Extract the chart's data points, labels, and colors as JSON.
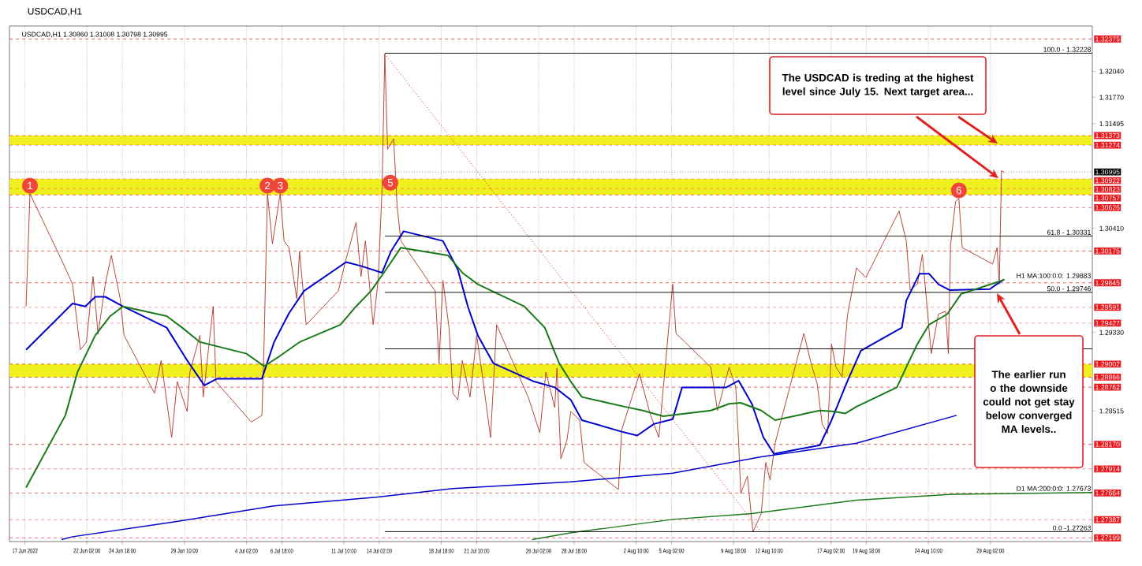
{
  "chart_data": {
    "type": "line",
    "title": "USDCAD,H1",
    "subtitle": "USDCAD,H1 1.30860 1.31008 1.30798 1.30995",
    "xlim": [
      "2022-06-16T06:00",
      "2022-09-05T18:00"
    ],
    "ylim": [
      1.2716,
      1.3251
    ],
    "grid": "x",
    "xticks": [
      {
        "value": "2022-06-17T10:00",
        "label": "17 Jun 2022"
      },
      {
        "value": "2022-06-22T02:00",
        "label": "22 Jun 02:00"
      },
      {
        "value": "2022-06-24T18:00",
        "label": "24 Jun 18:00"
      },
      {
        "value": "2022-06-29T10:00",
        "label": "29 Jun 10:00"
      },
      {
        "value": "2022-07-04T02:00",
        "label": "4 Jul 02:00"
      },
      {
        "value": "2022-07-06T18:00",
        "label": "6 Jul 18:00"
      },
      {
        "value": "2022-07-11T10:00",
        "label": "11 Jul 10:00"
      },
      {
        "value": "2022-07-14T02:00",
        "label": "14 Jul 02:00"
      },
      {
        "value": "2022-07-18T18:00",
        "label": "18 Jul 18:00"
      },
      {
        "value": "2022-07-21T10:00",
        "label": "21 Jul 10:00"
      },
      {
        "value": "2022-07-26T02:00",
        "label": "26 Jul 02:00"
      },
      {
        "value": "2022-07-28T18:00",
        "label": "28 Jul 18:00"
      },
      {
        "value": "2022-08-02T10:00",
        "label": "2 Aug 10:00"
      },
      {
        "value": "2022-08-05T02:00",
        "label": "5 Aug 02:00"
      },
      {
        "value": "2022-08-09T18:00",
        "label": "9 Aug 18:00"
      },
      {
        "value": "2022-08-12T10:00",
        "label": "12 Aug 10:00"
      },
      {
        "value": "2022-08-17T02:00",
        "label": "17 Aug 02:00"
      },
      {
        "value": "2022-08-19T18:00",
        "label": "19 Aug 18:00"
      },
      {
        "value": "2022-08-24T10:00",
        "label": "24 Aug 10:00"
      },
      {
        "value": "2022-08-29T02:00",
        "label": "29 Aug 02:00"
      }
    ],
    "yticks": [
      {
        "value": 1.3204,
        "label": "1.32040"
      },
      {
        "value": 1.3177,
        "label": "1.31770"
      },
      {
        "value": 1.31495,
        "label": "1.31495"
      },
      {
        "value": 1.3041,
        "label": "1.30410"
      },
      {
        "value": 1.2933,
        "label": "1.29330"
      },
      {
        "value": 1.28515,
        "label": "1.28515"
      }
    ],
    "series": [
      {
        "color": "#b03a2e",
        "line_style": "solid",
        "x": [
          "2022-06-17T12:00",
          "2022-06-17T19:00",
          "2022-06-20T06:00",
          "2022-06-21T00:00",
          "2022-06-21T14:00",
          "2022-06-22T01:00",
          "2022-06-22T13:00",
          "2022-06-22T22:00",
          "2022-06-23T11:00",
          "2022-06-23T22:00",
          "2022-06-24T14:00",
          "2022-06-24T21:00",
          "2022-06-27T04:00",
          "2022-06-27T16:00",
          "2022-06-28T11:00",
          "2022-06-28T21:00",
          "2022-06-29T15:00",
          "2022-06-29T20:00",
          "2022-06-30T14:00",
          "2022-06-30T20:00",
          "2022-07-01T14:00",
          "2022-07-01T19:00",
          "2022-07-04T11:00",
          "2022-07-05T06:00",
          "2022-07-05T10:00",
          "2022-07-05T16:00",
          "2022-07-06T01:00",
          "2022-07-06T15:00",
          "2022-07-06T22:00",
          "2022-07-07T07:00",
          "2022-07-07T21:00",
          "2022-07-08T02:00",
          "2022-07-08T14:00",
          "2022-07-11T00:00",
          "2022-07-11T14:00",
          "2022-07-12T08:00",
          "2022-07-12T17:00",
          "2022-07-13T01:00",
          "2022-07-13T15:00",
          "2022-07-14T00:00",
          "2022-07-14T07:00",
          "2022-07-14T12:00",
          "2022-07-14T17:00",
          "2022-07-15T04:00",
          "2022-07-15T10:00",
          "2022-07-15T17:00",
          "2022-07-18T07:00",
          "2022-07-18T14:00",
          "2022-07-18T21:00",
          "2022-07-19T08:00",
          "2022-07-19T15:00",
          "2022-07-20T00:00",
          "2022-07-20T08:00",
          "2022-07-20T22:00",
          "2022-07-21T10:00",
          "2022-07-21T21:00",
          "2022-07-22T11:00",
          "2022-07-22T22:00",
          "2022-07-25T07:00",
          "2022-07-26T04:00",
          "2022-07-26T15:00",
          "2022-07-27T07:00",
          "2022-07-27T11:00",
          "2022-07-27T18:00",
          "2022-07-28T05:00",
          "2022-07-28T12:00",
          "2022-07-29T04:00",
          "2022-07-29T12:00",
          "2022-08-01T02:00",
          "2022-08-01T08:00",
          "2022-08-02T01:00",
          "2022-08-02T16:00",
          "2022-08-03T11:00",
          "2022-08-04T03:00",
          "2022-08-05T04:00",
          "2022-08-05T10:00",
          "2022-08-08T01:00",
          "2022-08-08T13:00",
          "2022-08-09T10:00",
          "2022-08-09T22:00",
          "2022-08-10T03:00",
          "2022-08-10T07:00",
          "2022-08-10T19:00",
          "2022-08-11T05:00",
          "2022-08-11T20:00",
          "2022-08-12T04:00",
          "2022-08-12T12:00",
          "2022-08-12T21:00",
          "2022-08-15T01:00",
          "2022-08-15T14:00",
          "2022-08-16T01:00",
          "2022-08-16T10:00",
          "2022-08-16T20:00",
          "2022-08-17T03:00",
          "2022-08-17T11:00",
          "2022-08-17T22:00",
          "2022-08-18T08:00",
          "2022-08-19T00:00",
          "2022-08-19T17:00",
          "2022-08-22T05:00",
          "2022-08-22T18:00",
          "2022-08-23T01:00",
          "2022-08-23T14:00",
          "2022-08-23T23:00",
          "2022-08-24T07:00",
          "2022-08-24T15:00",
          "2022-08-25T04:00",
          "2022-08-25T17:00",
          "2022-08-25T22:00",
          "2022-08-26T02:00",
          "2022-08-26T11:00",
          "2022-08-26T17:00",
          "2022-08-26T23:00",
          "2022-08-29T06:00",
          "2022-08-29T14:00",
          "2022-08-29T18:00",
          "2022-08-29T22:00",
          "2022-08-30T03:00"
        ],
        "values": [
          1.296,
          1.3077,
          1.3006,
          1.2983,
          1.2915,
          1.2923,
          1.2991,
          1.2931,
          1.2983,
          1.3013,
          1.2968,
          1.293,
          1.287,
          1.2904,
          1.2824,
          1.2882,
          1.2851,
          1.2892,
          1.293,
          1.2866,
          1.296,
          1.2882,
          1.284,
          1.2847,
          1.2923,
          1.3077,
          1.3025,
          1.3077,
          1.3028,
          1.3021,
          1.2968,
          1.3017,
          1.2941,
          1.2976,
          1.3009,
          1.3047,
          1.2991,
          1.3028,
          1.2941,
          1.2987,
          1.3081,
          1.3222,
          1.3123,
          1.3134,
          1.3066,
          1.3028,
          1.2976,
          1.2901,
          1.2987,
          1.2938,
          1.287,
          1.2863,
          1.2904,
          1.2866,
          1.293,
          1.2885,
          1.2824,
          1.2941,
          1.2866,
          1.2829,
          1.2892,
          1.2855,
          1.2896,
          1.2802,
          1.2821,
          1.2851,
          1.2842,
          1.2798,
          1.277,
          1.2832,
          1.2863,
          1.289,
          1.2849,
          1.2824,
          1.2983,
          1.2932,
          1.2897,
          1.2852,
          1.2897,
          1.2876,
          1.2821,
          1.2766,
          1.2784,
          1.2726,
          1.2745,
          1.2798,
          1.278,
          1.2818,
          1.2932,
          1.2901,
          1.288,
          1.2838,
          1.2828,
          1.2921,
          1.2897,
          1.2887,
          1.2952,
          1.3,
          1.299,
          1.3059,
          1.3028,
          1.2977,
          1.2983,
          1.3014,
          1.2963,
          1.2911,
          1.2952,
          1.2955,
          1.2911,
          1.3024,
          1.3069,
          1.3072,
          1.3021,
          1.3004,
          1.3021,
          1.2983,
          1.3101,
          1.3099
        ]
      },
      {
        "color": "#0000cc",
        "line_style": "solid",
        "x": [
          "2022-06-17T12:00",
          "2022-06-21T00:00",
          "2022-06-21T23:00",
          "2022-06-22T17:00",
          "2022-06-23T11:00",
          "2022-06-24T19:00",
          "2022-06-28T02:00",
          "2022-06-29T15:00",
          "2022-06-30T22:00",
          "2022-07-01T21:00",
          "2022-07-05T06:00",
          "2022-07-06T04:00",
          "2022-07-07T07:00",
          "2022-07-08T10:00",
          "2022-07-11T14:00",
          "2022-07-12T17:00",
          "2022-07-14T07:00",
          "2022-07-14T23:00",
          "2022-07-15T22:00",
          "2022-07-18T21:00",
          "2022-07-20T00:00",
          "2022-07-20T18:00",
          "2022-07-21T12:00",
          "2022-07-22T16:00",
          "2022-07-25T18:00",
          "2022-07-27T07:00",
          "2022-07-28T12:00",
          "2022-07-29T08:00",
          "2022-08-01T08:00",
          "2022-08-02T12:00",
          "2022-08-03T18:00",
          "2022-08-05T04:00",
          "2022-08-05T21:00",
          "2022-08-09T05:00",
          "2022-08-10T03:00",
          "2022-08-11T03:00",
          "2022-08-12T00:00",
          "2022-08-12T19:00",
          "2022-08-16T06:00",
          "2022-08-17T03:00",
          "2022-08-18T08:00",
          "2022-08-19T08:00",
          "2022-08-22T10:00",
          "2022-08-22T18:00",
          "2022-08-23T18:00",
          "2022-08-24T11:00",
          "2022-08-25T04:00",
          "2022-08-26T00:00",
          "2022-08-29T01:00",
          "2022-08-29T18:00",
          "2022-08-30T03:00"
        ],
        "values": [
          1.2915,
          1.2963,
          1.296,
          1.297,
          1.297,
          1.296,
          1.2938,
          1.2904,
          1.2878,
          1.2885,
          1.2885,
          1.2923,
          1.2953,
          1.2976,
          1.3006,
          1.3002,
          1.2995,
          1.3017,
          1.3038,
          1.3028,
          1.2998,
          1.296,
          1.293,
          1.2901,
          1.2882,
          1.2876,
          1.2863,
          1.2842,
          1.283,
          1.2826,
          1.2838,
          1.2843,
          1.2876,
          1.2876,
          1.2883,
          1.2859,
          1.2824,
          1.2807,
          1.2816,
          1.2842,
          1.2883,
          1.2914,
          1.2938,
          1.2966,
          1.2994,
          1.2994,
          1.2983,
          1.2977,
          1.2978,
          1.2985,
          1.2988
        ]
      },
      {
        "color": "#1a7a1a",
        "line_style": "solid",
        "x": [
          "2022-06-17T12:00",
          "2022-06-20T11:00",
          "2022-06-21T09:00",
          "2022-06-22T17:00",
          "2022-06-23T20:00",
          "2022-06-24T19:00",
          "2022-06-28T02:00",
          "2022-06-29T06:00",
          "2022-06-30T14:00",
          "2022-07-04T02:00",
          "2022-07-05T10:00",
          "2022-07-06T13:00",
          "2022-07-08T02:00",
          "2022-07-11T04:00",
          "2022-07-12T08:00",
          "2022-07-13T11:00",
          "2022-07-14T14:00",
          "2022-07-15T17:00",
          "2022-07-19T06:00",
          "2022-07-20T08:00",
          "2022-07-21T12:00",
          "2022-07-25T00:00",
          "2022-07-26T13:00",
          "2022-07-27T15:00",
          "2022-07-28T12:00",
          "2022-07-29T08:00",
          "2022-08-01T13:00",
          "2022-08-02T22:00",
          "2022-08-04T11:00",
          "2022-08-08T01:00",
          "2022-08-09T10:00",
          "2022-08-10T07:00",
          "2022-08-11T20:00",
          "2022-08-12T21:00",
          "2022-08-16T06:00",
          "2022-08-17T07:00",
          "2022-08-18T04:00",
          "2022-08-19T00:00",
          "2022-08-22T01:00",
          "2022-08-22T18:00",
          "2022-08-23T14:00",
          "2022-08-24T11:00",
          "2022-08-25T20:00",
          "2022-08-26T21:00",
          "2022-08-29T18:00",
          "2022-08-30T03:00"
        ],
        "values": [
          1.2772,
          1.2847,
          1.2892,
          1.293,
          1.295,
          1.296,
          1.295,
          1.2938,
          1.2923,
          1.2911,
          1.2898,
          1.2908,
          1.2923,
          1.2941,
          1.296,
          1.2976,
          1.2998,
          1.3021,
          1.3013,
          1.2995,
          1.2983,
          1.296,
          1.2938,
          1.2901,
          1.2882,
          1.2866,
          1.2856,
          1.2852,
          1.2846,
          1.2852,
          1.2859,
          1.286,
          1.2852,
          1.2842,
          1.2852,
          1.2851,
          1.2849,
          1.2856,
          1.2876,
          1.2897,
          1.2921,
          1.2941,
          1.2952,
          1.2973,
          1.2986,
          1.2988
        ]
      },
      {
        "color": "#0000cc",
        "line_style": "solid",
        "x": [
          "2022-06-20T04:00",
          "2022-06-21T00:00",
          "2022-06-28T11:00",
          "2022-07-06T04:00",
          "2022-07-13T20:00",
          "2022-07-19T15:00",
          "2022-07-28T11:00",
          "2022-08-05T04:00",
          "2022-08-11T20:00",
          "2022-08-19T00:00",
          "2022-08-26T13:00"
        ],
        "values": [
          1.2718,
          1.2721,
          1.2736,
          1.2753,
          1.2762,
          1.2771,
          1.2778,
          1.2787,
          1.2804,
          1.2818,
          1.2847
        ]
      },
      {
        "color": "#1a7a1a",
        "line_style": "solid",
        "x": [
          "2022-07-25T14:00",
          "2022-07-28T11:00",
          "2022-08-05T04:00",
          "2022-08-11T03:00",
          "2022-08-19T00:00",
          "2022-08-26T06:00",
          "2022-09-05T18:00"
        ],
        "values": [
          1.2718,
          1.2725,
          1.2739,
          1.2745,
          1.2759,
          1.2765,
          1.2767
        ]
      },
      {
        "color": "#cc0000",
        "line_style": "dotted",
        "x": [
          "2022-07-14T12:00",
          "2022-08-11T20:00"
        ],
        "values": [
          1.3222,
          1.2726
        ]
      },
      {
        "color": "#000000",
        "line_style": "solid",
        "x": [
          "2022-07-14T12:00",
          "2022-09-05T18:00"
        ],
        "values": [
          1.32228,
          1.32228
        ]
      },
      {
        "color": "#000000",
        "line_style": "solid",
        "x": [
          "2022-07-14T12:00",
          "2022-09-05T18:00"
        ],
        "values": [
          1.30331,
          1.30331
        ]
      },
      {
        "color": "#000000",
        "line_style": "solid",
        "x": [
          "2022-07-14T12:00",
          "2022-09-05T18:00"
        ],
        "values": [
          1.29746,
          1.29746
        ]
      },
      {
        "color": "#000000",
        "line_style": "solid",
        "x": [
          "2022-07-14T12:00",
          "2022-09-05T18:00"
        ],
        "values": [
          1.2916,
          1.2916
        ]
      },
      {
        "color": "#000000",
        "line_style": "solid",
        "x": [
          "2022-07-14T12:00",
          "2022-09-05T18:00"
        ],
        "values": [
          1.27263,
          1.27263
        ]
      }
    ],
    "bands": [
      {
        "axis": "y",
        "from": 1.31274,
        "to": 1.31373,
        "color": "#f0f020"
      },
      {
        "axis": "y",
        "from": 1.30757,
        "to": 1.30922,
        "color": "#f0f020"
      },
      {
        "axis": "y",
        "from": 1.28866,
        "to": 1.29002,
        "color": "#f0f020"
      }
    ],
    "ref_lines": [
      {
        "axis": "y",
        "value": 1.32375,
        "label": "1.32375",
        "color": "#e8191e",
        "line_style": "dashed"
      },
      {
        "axis": "y",
        "value": 1.31373,
        "label": "1.31373",
        "color": "#e8191e",
        "line_style": "dashed"
      },
      {
        "axis": "y",
        "value": 1.31274,
        "label": "1.31274",
        "color": "#e8191e",
        "line_style": "dashed"
      },
      {
        "axis": "y",
        "value": 1.30995,
        "label": "1.30995",
        "color": "#000000",
        "line_style": "dotted"
      },
      {
        "axis": "y",
        "value": 1.30922,
        "label": "1.30922",
        "color": "#e8191e",
        "line_style": "dashed"
      },
      {
        "axis": "y",
        "value": 1.30823,
        "label": "1.30823",
        "color": "#e8191e",
        "line_style": "dashed"
      },
      {
        "axis": "y",
        "value": 1.30757,
        "label": "1.30757",
        "color": "#e8191e",
        "line_style": "dashed"
      },
      {
        "axis": "y",
        "value": 1.30626,
        "label": "1.30626",
        "color": "#e8191e",
        "line_style": "dashed"
      },
      {
        "axis": "y",
        "value": 1.30175,
        "label": "1.30175",
        "color": "#e8191e",
        "line_style": "dashed"
      },
      {
        "axis": "y",
        "value": 1.29845,
        "label": "1.29845",
        "color": "#e8191e",
        "line_style": "dashed"
      },
      {
        "axis": "y",
        "value": 1.29591,
        "label": "1.29591",
        "color": "#e8191e",
        "line_style": "dashed"
      },
      {
        "axis": "y",
        "value": 1.29427,
        "label": "1.29427",
        "color": "#e8191e",
        "line_style": "dashed"
      },
      {
        "axis": "y",
        "value": 1.29002,
        "label": "1.29002",
        "color": "#e8191e",
        "line_style": "dashed"
      },
      {
        "axis": "y",
        "value": 1.28866,
        "label": "1.28866",
        "color": "#e8191e",
        "line_style": "dashed"
      },
      {
        "axis": "y",
        "value": 1.28762,
        "label": "1.28762",
        "color": "#e8191e",
        "line_style": "dashed"
      },
      {
        "axis": "y",
        "value": 1.2817,
        "label": "1.28170",
        "color": "#e8191e",
        "line_style": "dashed"
      },
      {
        "axis": "y",
        "value": 1.27914,
        "label": "1.27914",
        "color": "#e8191e",
        "line_style": "dashed"
      },
      {
        "axis": "y",
        "value": 1.27664,
        "label": "1.27664",
        "color": "#e8191e",
        "line_style": "dashed"
      },
      {
        "axis": "y",
        "value": 1.27387,
        "label": "1.27387",
        "color": "#e8191e",
        "line_style": "dashed"
      },
      {
        "axis": "y",
        "value": 1.27199,
        "label": "1.27199",
        "color": "#e8191e",
        "line_style": "dashed"
      }
    ],
    "annotations": [
      "The USDCAD is treding at the highest level since July 15. Next target area...",
      "The earlier run o the downside could not get stay below converged MA levels..",
      {
        "text": "1",
        "x": "2022-06-17T19:00",
        "y": 1.3077
      },
      {
        "text": "2",
        "x": "2022-07-05T16:00",
        "y": 1.3077
      },
      {
        "text": "3",
        "x": "2022-07-06T15:00",
        "y": 1.3077
      },
      {
        "text": "5",
        "x": "2022-07-14T22:00",
        "y": 1.308
      },
      {
        "text": "6",
        "x": "2022-08-26T17:00",
        "y": 1.3072
      },
      {
        "text": "100.0 - 1.32228",
        "x": "2022-09-05T18:00",
        "y": 1.32228
      },
      {
        "text": "61.8 - 1.30331",
        "x": "2022-09-05T18:00",
        "y": 1.30331
      },
      {
        "text": "50.0 - 1.29746",
        "x": "2022-09-05T18:00",
        "y": 1.29746
      },
      {
        "text": "0.0 -1.27263",
        "x": "2022-09-05T18:00",
        "y": 1.27263
      },
      {
        "text": "H1 MA:100:0:0: 1.29883",
        "x": "2022-09-05T18:00",
        "y": 1.2988
      },
      {
        "text": "D1 MA:200:0:0: 1.27673",
        "x": "2022-09-05T18:00",
        "y": 1.27673
      }
    ]
  }
}
